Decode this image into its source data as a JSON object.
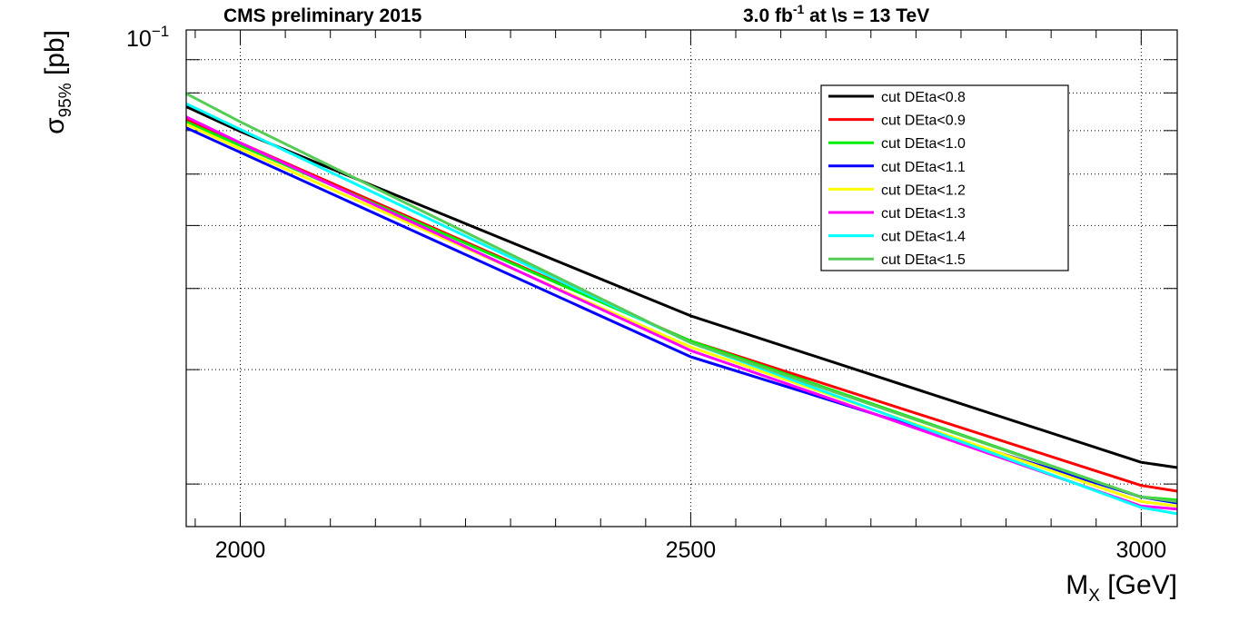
{
  "header": {
    "left": "CMS preliminary 2015",
    "right_lumi": "3.0 fb",
    "right_lumi_exp": "-1",
    "right_rest": " at  \\s = 13 TeV"
  },
  "chart_data": {
    "type": "line",
    "title": "",
    "xlabel": "M",
    "xlabel_sub": "X",
    "xlabel_unit": " [GeV]",
    "ylabel_symbol": "σ",
    "ylabel_sub": "95%",
    "ylabel_unit": " [pb]",
    "xlim": [
      1940,
      3040
    ],
    "ylim": [
      0.0172,
      0.1
    ],
    "yscale": "log",
    "grid": true,
    "legend_position": "top-right",
    "x_ticks": [
      {
        "value": 2000,
        "label": "2000"
      },
      {
        "value": 2500,
        "label": "2500"
      },
      {
        "value": 3000,
        "label": "3000"
      }
    ],
    "y_top_label": "10",
    "y_top_label_exp": "−1",
    "x": [
      1940,
      2000,
      2500,
      3000,
      3040
    ],
    "series": [
      {
        "name": "cut DEta<0.8",
        "color": "#000000",
        "values": [
          0.0762,
          0.0698,
          0.0363,
          0.0216,
          0.0212
        ]
      },
      {
        "name": "cut DEta<0.9",
        "color": "#ff0000",
        "values": [
          0.0729,
          0.067,
          0.0332,
          0.0199,
          0.0195
        ]
      },
      {
        "name": "cut DEta<1.0",
        "color": "#00ee00",
        "values": [
          0.0722,
          0.0664,
          0.0332,
          0.0191,
          0.0189
        ]
      },
      {
        "name": "cut DEta<1.1",
        "color": "#0000ff",
        "values": [
          0.0707,
          0.0648,
          0.0314,
          0.0191,
          0.0187
        ]
      },
      {
        "name": "cut DEta<1.2",
        "color": "#ffff00",
        "values": [
          0.0716,
          0.0656,
          0.0325,
          0.0188,
          0.0185
        ]
      },
      {
        "name": "cut DEta<1.3",
        "color": "#ff00ff",
        "values": [
          0.0735,
          0.067,
          0.0321,
          0.0185,
          0.0183
        ]
      },
      {
        "name": "cut DEta<1.4",
        "color": "#00ffff",
        "values": [
          0.077,
          0.0703,
          0.033,
          0.0184,
          0.018
        ]
      },
      {
        "name": "cut DEta<1.5",
        "color": "#55cc55",
        "values": [
          0.0798,
          0.0722,
          0.033,
          0.0191,
          0.0188
        ]
      }
    ]
  }
}
